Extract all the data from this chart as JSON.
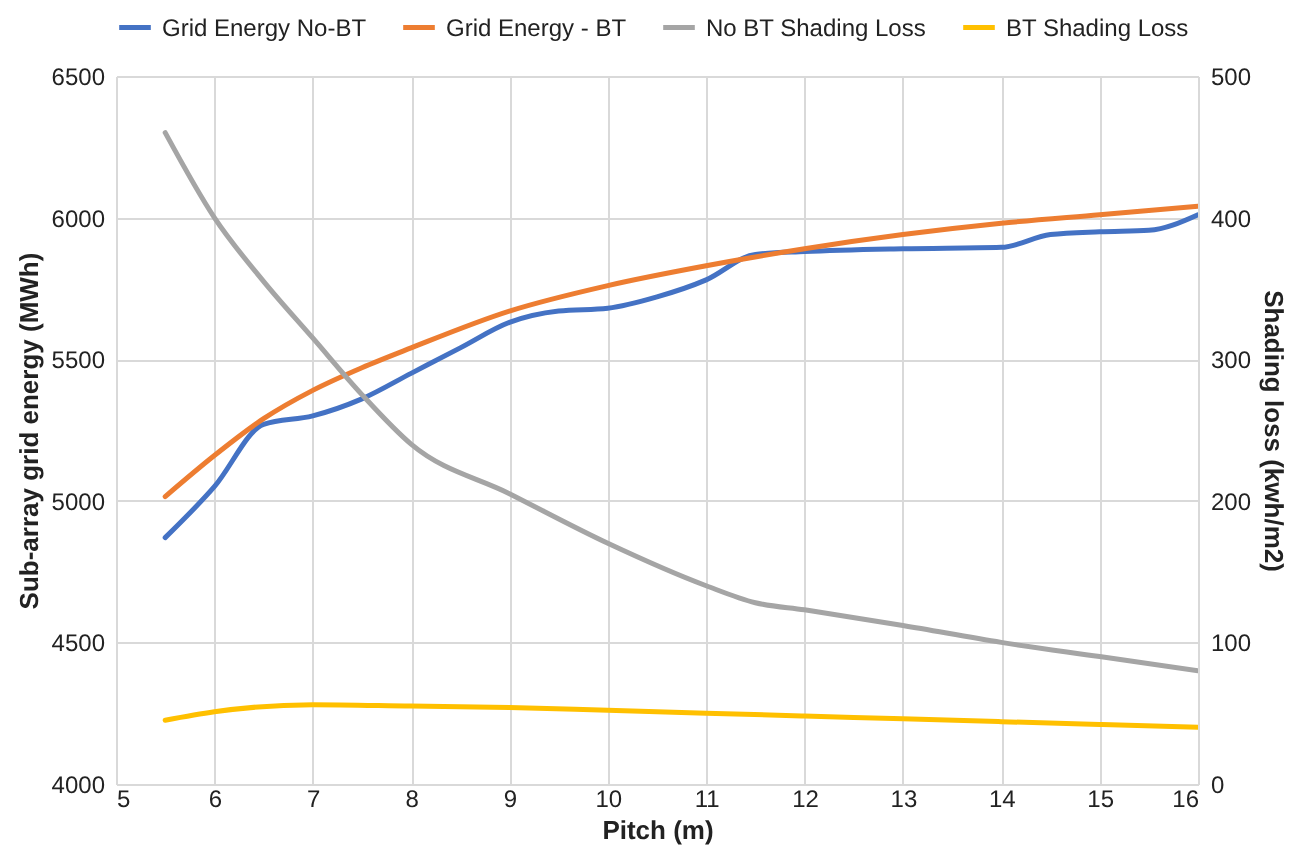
{
  "chart_data": {
    "type": "line",
    "xlabel": "Pitch (m)",
    "ylabel": "Sub-array grid energy (MWh)",
    "y2label": "Shading loss (kwh/m2)",
    "xlim": [
      5,
      16
    ],
    "xticks": [
      5,
      6,
      7,
      8,
      9,
      10,
      11,
      12,
      13,
      14,
      15,
      16
    ],
    "ylim": [
      4000,
      6500
    ],
    "yticks": [
      4000,
      4500,
      5000,
      5500,
      6000,
      6500
    ],
    "y2lim": [
      0,
      500
    ],
    "y2ticks": [
      0,
      100,
      200,
      300,
      400,
      500
    ],
    "grid": true,
    "legend": "top",
    "line_style": "solid",
    "marker": "none",
    "series": [
      {
        "name": "Grid Energy No-BT",
        "color": "#4472c4",
        "x": [
          5.5,
          6,
          6.5,
          7,
          7.5,
          8,
          8.5,
          9,
          9.5,
          10,
          10.5,
          11,
          11.5,
          12,
          13,
          14,
          14.5,
          15,
          15.5,
          16
        ],
        "values": [
          4870,
          5050,
          5270,
          5300,
          5360,
          5450,
          5540,
          5630,
          5670,
          5680,
          5720,
          5780,
          5870,
          5880,
          5890,
          5895,
          5940,
          5950,
          5955,
          6010
        ]
      },
      {
        "name": "Grid Energy - BT",
        "color": "#ed7d31",
        "x": [
          5.5,
          6,
          6.5,
          7,
          7.5,
          8,
          9,
          10,
          11,
          12,
          13,
          14,
          15,
          16
        ],
        "values": [
          5015,
          5160,
          5290,
          5390,
          5470,
          5540,
          5670,
          5760,
          5830,
          5890,
          5940,
          5980,
          6010,
          6040
        ]
      },
      {
        "name": "No BT Shading Loss",
        "color": "#a5a5a5",
        "axis": "y2",
        "x": [
          5.5,
          6,
          6.5,
          7,
          7.5,
          8,
          9,
          10,
          11,
          11.5,
          12,
          13,
          14,
          15,
          16
        ],
        "values": [
          460,
          400,
          355,
          315,
          275,
          240,
          205,
          170,
          140,
          128,
          123,
          112,
          100,
          90,
          80
        ]
      },
      {
        "name": "BT Shading Loss",
        "color": "#ffc000",
        "axis": "y2",
        "x": [
          5.5,
          6,
          7,
          8,
          9,
          10,
          11,
          12,
          13,
          14,
          15,
          16
        ],
        "values": [
          45,
          51,
          56,
          55,
          54,
          52,
          50,
          48,
          46,
          44,
          42,
          40
        ]
      }
    ]
  }
}
